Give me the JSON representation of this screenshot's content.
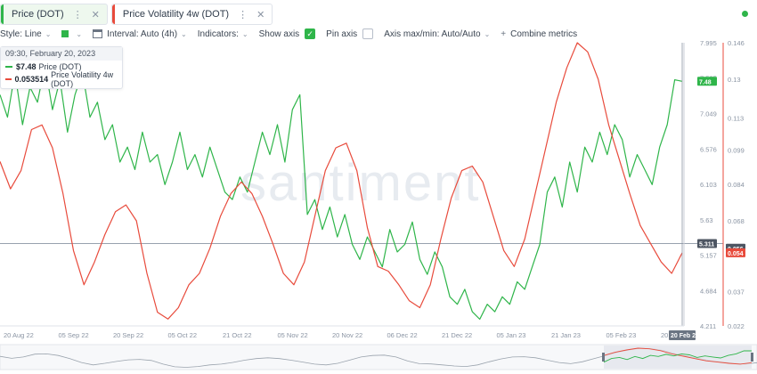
{
  "tabs": [
    {
      "label": "Price (DOT)",
      "color": "#2fb54a",
      "active": true
    },
    {
      "label": "Price Volatility 4w (DOT)",
      "color": "#e84b3c",
      "active": false
    }
  ],
  "toolbar": {
    "style_label": "Style: Line",
    "interval_label": "Interval: Auto (4h)",
    "indicators_label": "Indicators:",
    "show_axis_label": "Show axis",
    "pin_axis_label": "Pin axis",
    "axis_maxmin_label": "Axis max/min: Auto/Auto",
    "combine_label": "Combine metrics"
  },
  "tooltip": {
    "time": "09:30, February 20, 2023",
    "price_value": "$7.48",
    "price_label": "Price (DOT)",
    "vol_value": "0.053514",
    "vol_label": "Price Volatility 4w (DOT)"
  },
  "watermark": "santiment",
  "colors": {
    "price": "#2fb54a",
    "volatility": "#e84b3c",
    "axis_text": "#8a94a3"
  },
  "chart_data": {
    "type": "line",
    "x_ticks": [
      "20 Aug 22",
      "05 Sep 22",
      "20 Sep 22",
      "05 Oct 22",
      "21 Oct 22",
      "05 Nov 22",
      "20 Nov 22",
      "06 Dec 22",
      "21 Dec 22",
      "05 Jan 23",
      "21 Jan 23",
      "05 Feb 23",
      "20 Feb 23"
    ],
    "x_cursor_label": "20 Feb 23",
    "price_axis": {
      "ticks": [
        "7.995",
        "7.525",
        "7.049",
        "6.576",
        "6.103",
        "5.63",
        "5.157",
        "4.684",
        "4.211"
      ],
      "ylim": [
        4.211,
        7.995
      ]
    },
    "volatility_axis": {
      "ticks": [
        "0.146",
        "0.13",
        "0.113",
        "0.099",
        "0.084",
        "0.068",
        "0.054",
        "0.037",
        "0.022"
      ],
      "ylim": [
        0.022,
        0.146
      ]
    },
    "badges": {
      "price_current": "7.48",
      "price_cross": "5.311",
      "vol_cross": "0.056",
      "vol_current": "0.054"
    },
    "series": [
      {
        "name": "Price (DOT)",
        "axis": "price",
        "values": [
          7.3,
          7.0,
          7.6,
          6.9,
          7.4,
          7.2,
          7.7,
          7.1,
          7.5,
          6.8,
          7.3,
          7.6,
          7.0,
          7.2,
          6.7,
          6.9,
          6.4,
          6.6,
          6.3,
          6.8,
          6.4,
          6.5,
          6.1,
          6.4,
          6.8,
          6.3,
          6.5,
          6.2,
          6.6,
          6.3,
          6.0,
          5.9,
          6.2,
          6.0,
          6.4,
          6.8,
          6.5,
          6.9,
          6.4,
          7.1,
          7.3,
          5.7,
          5.9,
          5.5,
          5.8,
          5.4,
          5.7,
          5.3,
          5.1,
          5.4,
          5.2,
          5.0,
          5.5,
          5.2,
          5.3,
          5.6,
          5.1,
          4.9,
          5.2,
          5.0,
          4.6,
          4.5,
          4.7,
          4.4,
          4.3,
          4.5,
          4.4,
          4.6,
          4.5,
          4.8,
          4.7,
          5.0,
          5.3,
          6.0,
          6.2,
          5.8,
          6.4,
          6.0,
          6.6,
          6.4,
          6.8,
          6.5,
          6.9,
          6.7,
          6.2,
          6.5,
          6.3,
          6.1,
          6.6,
          6.9,
          7.5,
          7.48
        ]
      },
      {
        "name": "Price Volatility 4w (DOT)",
        "axis": "volatility",
        "values": [
          0.094,
          0.082,
          0.09,
          0.108,
          0.11,
          0.1,
          0.08,
          0.055,
          0.04,
          0.05,
          0.062,
          0.072,
          0.075,
          0.068,
          0.045,
          0.028,
          0.025,
          0.03,
          0.04,
          0.045,
          0.056,
          0.07,
          0.08,
          0.085,
          0.08,
          0.07,
          0.058,
          0.045,
          0.04,
          0.05,
          0.07,
          0.09,
          0.1,
          0.102,
          0.09,
          0.065,
          0.048,
          0.046,
          0.04,
          0.033,
          0.03,
          0.04,
          0.06,
          0.078,
          0.09,
          0.092,
          0.085,
          0.07,
          0.055,
          0.048,
          0.06,
          0.08,
          0.1,
          0.12,
          0.135,
          0.146,
          0.142,
          0.13,
          0.11,
          0.095,
          0.08,
          0.066,
          0.058,
          0.05,
          0.045,
          0.054
        ]
      }
    ],
    "grid": false
  }
}
